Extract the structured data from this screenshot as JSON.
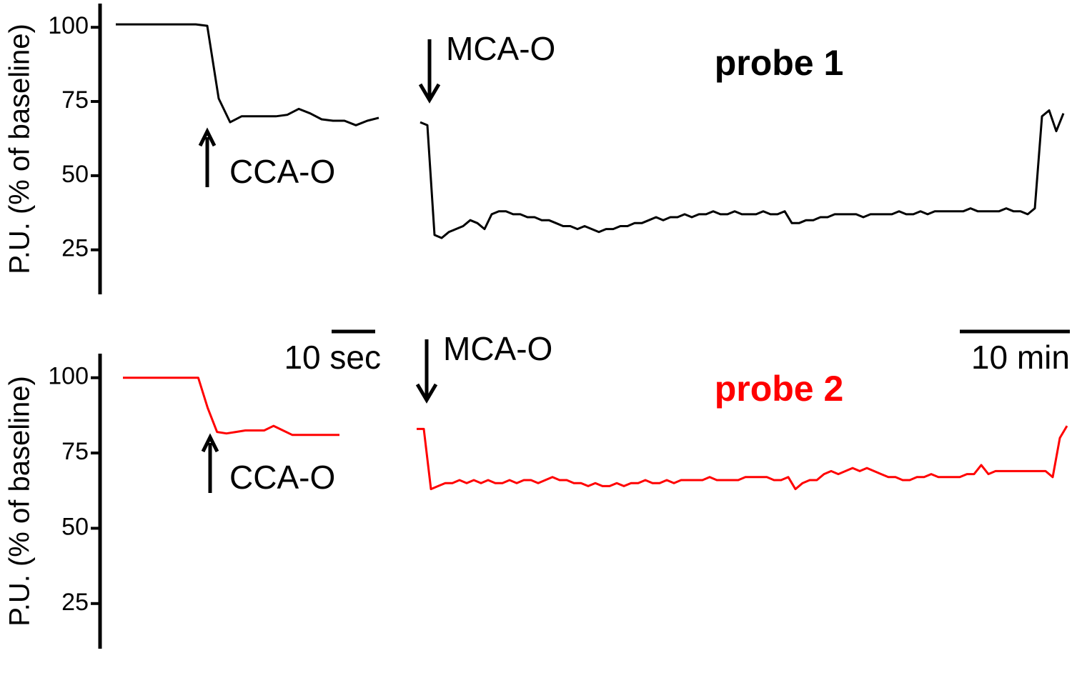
{
  "chart_data": [
    {
      "type": "line",
      "ylabel": "P.U. (% of baseline)",
      "label": "probe 1",
      "label_color": "#000000",
      "annotations": [
        "CCA-O",
        "MCA-O"
      ],
      "time_scales": [
        "10 sec",
        "10 min"
      ],
      "ylim": [
        10,
        108
      ],
      "yticks": [
        25,
        50,
        75,
        100
      ],
      "series": [
        {
          "color": "#000000",
          "values": [
            101,
            101,
            101,
            101,
            101,
            101,
            101,
            101,
            100.5,
            76,
            68,
            70,
            70,
            70,
            70,
            70.5,
            72.5,
            71,
            69,
            68.5,
            68.5,
            67,
            68.5,
            69.5
          ]
        },
        {
          "color": "#000000",
          "values": [
            68,
            67,
            30,
            29,
            31,
            32,
            33,
            35,
            34,
            32,
            37,
            38,
            38,
            37,
            37,
            36,
            36,
            35,
            35,
            34,
            33,
            33,
            32,
            33,
            32,
            31,
            32,
            32,
            33,
            33,
            34,
            34,
            35,
            36,
            35,
            36,
            36,
            37,
            36,
            37,
            37,
            38,
            37,
            37,
            38,
            37,
            37,
            37,
            38,
            37,
            37,
            38,
            34,
            34,
            35,
            35,
            36,
            36,
            37,
            37,
            37,
            37,
            36,
            37,
            37,
            37,
            37,
            38,
            37,
            37,
            38,
            37,
            38,
            38,
            38,
            38,
            38,
            39,
            38,
            38,
            38,
            38,
            39,
            38,
            38,
            37,
            39,
            70,
            72,
            65,
            71
          ]
        }
      ]
    },
    {
      "type": "line",
      "ylabel": "P.U. (% of baseline)",
      "label": "probe 2",
      "label_color": "#ff0000",
      "annotations": [
        "CCA-O",
        "MCA-O"
      ],
      "ylim": [
        10,
        108
      ],
      "yticks": [
        25,
        50,
        75,
        100
      ],
      "series": [
        {
          "color": "#ff0000",
          "values": [
            100,
            100,
            100,
            100,
            100,
            100,
            100,
            100,
            100,
            90,
            82,
            81.5,
            82,
            82.5,
            82.5,
            82.5,
            84,
            82.5,
            81,
            81,
            81,
            81,
            81,
            81
          ]
        },
        {
          "color": "#ff0000",
          "values": [
            83,
            83,
            63,
            64,
            65,
            65,
            66,
            65,
            66,
            65,
            66,
            65,
            65,
            66,
            65,
            66,
            66,
            65,
            66,
            67,
            66,
            66,
            65,
            65,
            64,
            65,
            64,
            64,
            65,
            64,
            65,
            65,
            66,
            65,
            65,
            66,
            65,
            66,
            66,
            66,
            66,
            67,
            66,
            66,
            66,
            66,
            67,
            67,
            67,
            67,
            66,
            66,
            67,
            63,
            65,
            66,
            66,
            68,
            69,
            68,
            69,
            70,
            69,
            70,
            69,
            68,
            67,
            67,
            66,
            66,
            67,
            67,
            68,
            67,
            67,
            67,
            67,
            68,
            68,
            71,
            68,
            69,
            69,
            69,
            69,
            69,
            69,
            69,
            69,
            67,
            80,
            84
          ]
        }
      ]
    }
  ]
}
